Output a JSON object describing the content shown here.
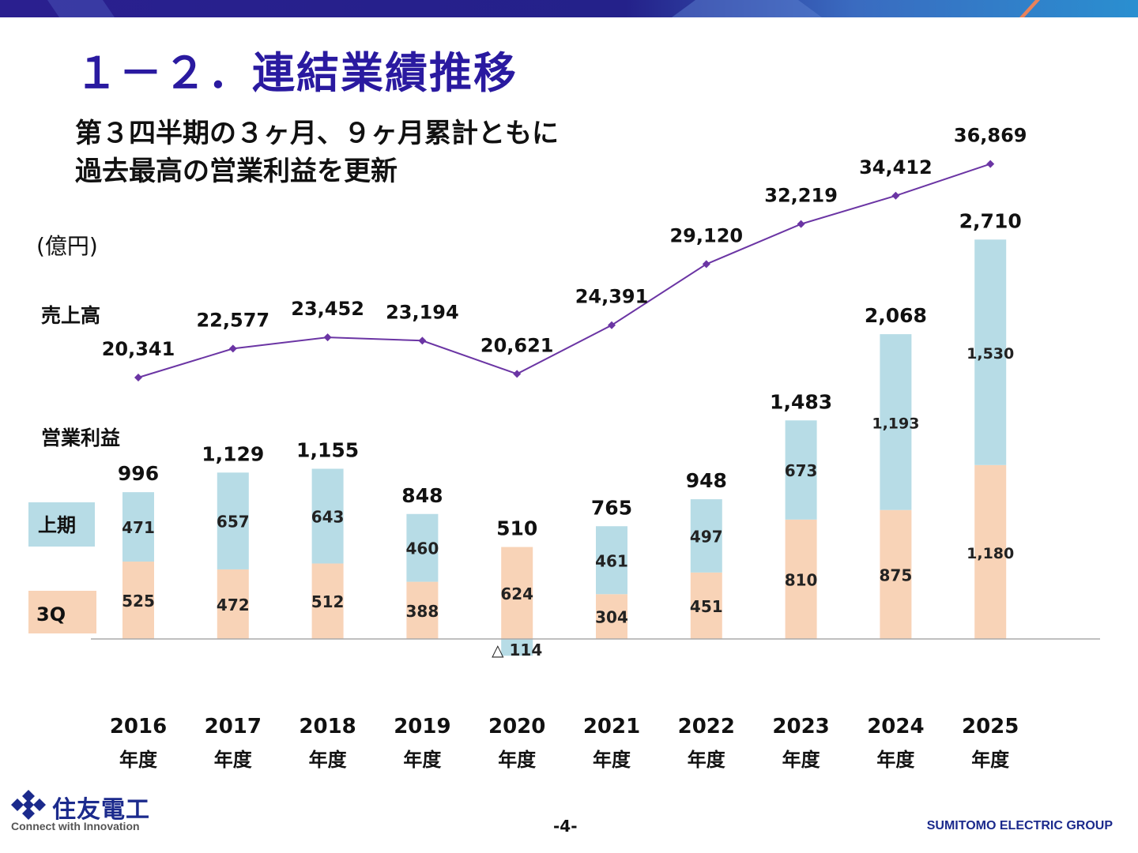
{
  "title": "１－２．連結業績推移",
  "subtitle_lines": [
    "第３四半期の３ヶ月、９ヶ月累計ともに",
    "過去最高の営業利益を更新"
  ],
  "unit": "(億円)",
  "labels": {
    "sales": "売上高",
    "op_profit": "営業利益"
  },
  "legend": {
    "h1": "上期",
    "q3": "3Q"
  },
  "chart_data": {
    "type": "bar",
    "categories": [
      "2016",
      "2017",
      "2018",
      "2019",
      "2020",
      "2021",
      "2022",
      "2023",
      "2024",
      "2025"
    ],
    "category_suffix": "年度",
    "series": [
      {
        "name": "上期",
        "values": [
          471,
          657,
          643,
          460,
          -114,
          461,
          497,
          673,
          1193,
          1530
        ],
        "labels": [
          "471",
          "657",
          "643",
          "460",
          "△ 114",
          "461",
          "497",
          "673",
          "1,193",
          "1,530"
        ],
        "color": "#b7dce6"
      },
      {
        "name": "3Q",
        "values": [
          525,
          472,
          512,
          388,
          624,
          304,
          451,
          810,
          875,
          1180
        ],
        "labels": [
          "525",
          "472",
          "512",
          "388",
          "624",
          "304",
          "451",
          "810",
          "875",
          "1,180"
        ],
        "color": "#f8d3b7"
      }
    ],
    "totals": [
      "996",
      "1,129",
      "1,155",
      "848",
      "510",
      "765",
      "948",
      "1,483",
      "2,068",
      "2,710"
    ],
    "line": {
      "name": "売上高",
      "values": [
        20341,
        22577,
        23452,
        23194,
        20621,
        24391,
        29120,
        32219,
        34412,
        36869
      ],
      "labels": [
        "20,341",
        "22,577",
        "23,452",
        "23,194",
        "20,621",
        "24,391",
        "29,120",
        "32,219",
        "34,412",
        "36,869"
      ],
      "color": "#6b35a4"
    }
  },
  "footer": {
    "company": "住友電工",
    "tagline": "Connect with Innovation",
    "page": "-4-",
    "group": "SUMITOMO ELECTRIC GROUP"
  },
  "colors": {
    "title": "#2a1aa0",
    "brand": "#1b2a8c"
  }
}
